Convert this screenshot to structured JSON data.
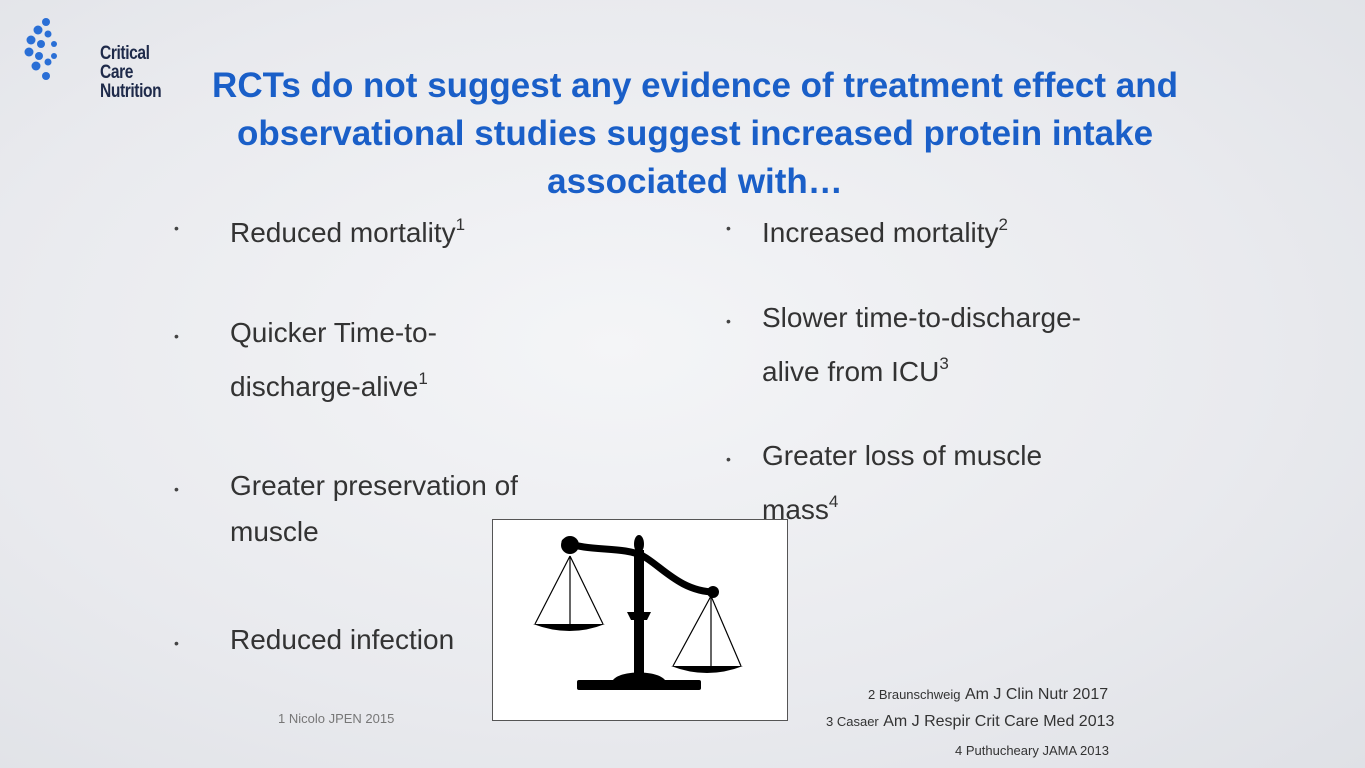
{
  "logo": {
    "line1": "Critical Care",
    "line2": "Nutrition"
  },
  "title": "RCTs do not suggest any evidence of treatment effect and observational studies suggest increased protein intake associated with…",
  "left_bullets": [
    {
      "text": "Reduced mortality",
      "sup": "1"
    },
    {
      "line1": "Quicker Time-to-",
      "line2": "discharge-alive",
      "sup": "1"
    },
    {
      "line1": "Greater preservation of",
      "line2": "muscle"
    },
    {
      "text": "Reduced infection"
    }
  ],
  "right_bullets": [
    {
      "text": "Increased mortality",
      "sup": "2"
    },
    {
      "line1": "Slower time-to-discharge-",
      "line2": "alive from ICU",
      "sup": "3"
    },
    {
      "line1": "Greater loss of muscle",
      "line2": "mass",
      "sup": "4"
    }
  ],
  "bullet_char": "•",
  "references": {
    "ref1": "1 Nicolo JPEN 2015",
    "ref2_author": "2 Braunschweig",
    "ref2_journal": "Am J Clin Nutr 2017",
    "ref3_author": "3 Casaer",
    "ref3_journal": "Am J Respir Crit Care Med 2013",
    "ref4": "4 Puthucheary JAMA 2013"
  },
  "colors": {
    "title": "#1a5fc8",
    "logo_blue": "#2a6fd6",
    "logo_text": "#1e2a4a"
  }
}
